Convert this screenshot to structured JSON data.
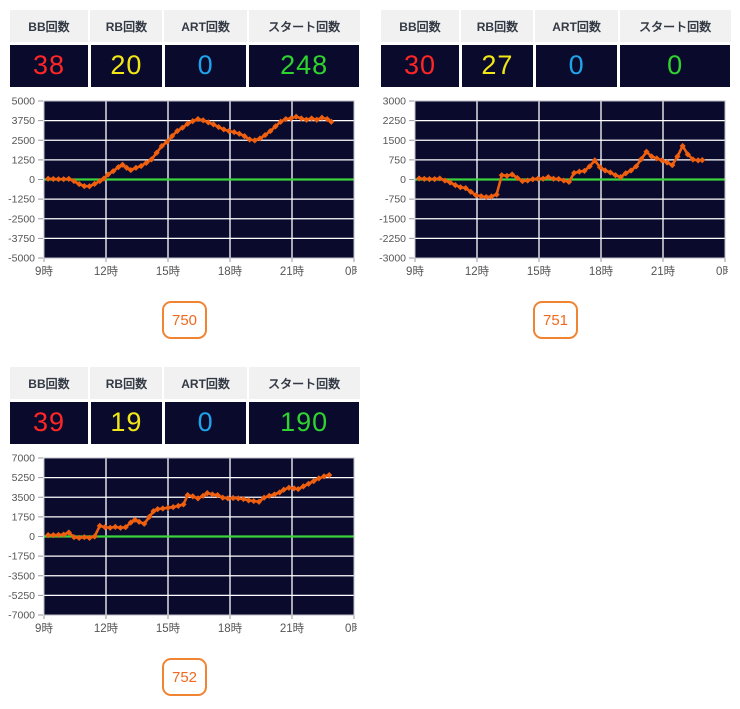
{
  "stats_headers": [
    "BB回数",
    "RB回数",
    "ART回数",
    "スタート回数"
  ],
  "value_colors": {
    "bb": "#ff2626",
    "rb": "#f2e716",
    "art": "#1fa3ea",
    "start": "#2fd32f"
  },
  "table_colors": {
    "cell_bg": "#0a0a2d",
    "header_bg": "#f1f1f2"
  },
  "panels": [
    {
      "machine_label": "750",
      "bb": "38",
      "rb": "20",
      "art": "0",
      "start": "248",
      "chart_data": {
        "type": "line",
        "title": "",
        "xlabel": "",
        "ylabel": "",
        "xlim": [
          9,
          24
        ],
        "ylim": [
          -5000,
          5000
        ],
        "y_step": 1250,
        "x_tick_hours": [
          9,
          12,
          15,
          18,
          21,
          24
        ],
        "x_tick_labels": [
          "9時",
          "12時",
          "15時",
          "18時",
          "21時",
          "0時"
        ],
        "grid": true,
        "bg_color": "#0a0a2d",
        "grid_color": "#ffffff",
        "zero_line_color": "#3bd33b",
        "series_color": "#ee5f10",
        "points": [
          [
            9.2,
            50
          ],
          [
            9.45,
            30
          ],
          [
            9.7,
            20
          ],
          [
            9.95,
            20
          ],
          [
            10.2,
            40
          ],
          [
            10.45,
            -100
          ],
          [
            10.7,
            -290
          ],
          [
            10.95,
            -420
          ],
          [
            11.2,
            -430
          ],
          [
            11.45,
            -280
          ],
          [
            11.7,
            -100
          ],
          [
            11.9,
            60
          ],
          [
            12.1,
            320
          ],
          [
            12.35,
            530
          ],
          [
            12.6,
            790
          ],
          [
            12.8,
            940
          ],
          [
            13.0,
            745
          ],
          [
            13.2,
            600
          ],
          [
            13.45,
            745
          ],
          [
            13.7,
            860
          ],
          [
            13.95,
            1060
          ],
          [
            14.2,
            1280
          ],
          [
            14.45,
            1700
          ],
          [
            14.7,
            2130
          ],
          [
            14.95,
            2400
          ],
          [
            15.2,
            2770
          ],
          [
            15.45,
            3090
          ],
          [
            15.7,
            3300
          ],
          [
            15.95,
            3550
          ],
          [
            16.2,
            3720
          ],
          [
            16.45,
            3850
          ],
          [
            16.7,
            3770
          ],
          [
            16.95,
            3640
          ],
          [
            17.2,
            3510
          ],
          [
            17.45,
            3340
          ],
          [
            17.7,
            3190
          ],
          [
            17.95,
            3085
          ],
          [
            18.2,
            3020
          ],
          [
            18.45,
            2915
          ],
          [
            18.7,
            2765
          ],
          [
            18.95,
            2550
          ],
          [
            19.2,
            2490
          ],
          [
            19.45,
            2615
          ],
          [
            19.7,
            2830
          ],
          [
            19.95,
            3085
          ],
          [
            20.2,
            3385
          ],
          [
            20.45,
            3680
          ],
          [
            20.7,
            3850
          ],
          [
            20.95,
            3890
          ],
          [
            21.2,
            4000
          ],
          [
            21.45,
            3890
          ],
          [
            21.7,
            3805
          ],
          [
            21.95,
            3890
          ],
          [
            22.2,
            3805
          ],
          [
            22.45,
            3935
          ],
          [
            22.7,
            3850
          ],
          [
            22.9,
            3680
          ]
        ]
      }
    },
    {
      "machine_label": "751",
      "bb": "30",
      "rb": "27",
      "art": "0",
      "start": "0",
      "chart_data": {
        "type": "line",
        "title": "",
        "xlabel": "",
        "ylabel": "",
        "xlim": [
          9,
          24
        ],
        "ylim": [
          -3000,
          3000
        ],
        "y_step": 750,
        "x_tick_hours": [
          9,
          12,
          15,
          18,
          21,
          24
        ],
        "x_tick_labels": [
          "9時",
          "12時",
          "15時",
          "18時",
          "21時",
          "0時"
        ],
        "grid": true,
        "bg_color": "#0a0a2d",
        "grid_color": "#ffffff",
        "zero_line_color": "#3bd33b",
        "series_color": "#ee5f10",
        "points": [
          [
            9.2,
            40
          ],
          [
            9.45,
            25
          ],
          [
            9.7,
            15
          ],
          [
            9.95,
            15
          ],
          [
            10.2,
            40
          ],
          [
            10.45,
            -40
          ],
          [
            10.7,
            -115
          ],
          [
            10.95,
            -215
          ],
          [
            11.2,
            -295
          ],
          [
            11.45,
            -330
          ],
          [
            11.7,
            -470
          ],
          [
            11.95,
            -600
          ],
          [
            12.2,
            -640
          ],
          [
            12.45,
            -670
          ],
          [
            12.7,
            -650
          ],
          [
            12.95,
            -575
          ],
          [
            13.2,
            165
          ],
          [
            13.45,
            140
          ],
          [
            13.7,
            190
          ],
          [
            13.95,
            60
          ],
          [
            14.2,
            -60
          ],
          [
            14.45,
            -40
          ],
          [
            14.7,
            10
          ],
          [
            14.95,
            30
          ],
          [
            15.2,
            30
          ],
          [
            15.45,
            90
          ],
          [
            15.7,
            30
          ],
          [
            15.95,
            20
          ],
          [
            16.2,
            -40
          ],
          [
            16.45,
            -90
          ],
          [
            16.7,
            250
          ],
          [
            16.95,
            300
          ],
          [
            17.2,
            330
          ],
          [
            17.45,
            500
          ],
          [
            17.7,
            730
          ],
          [
            17.95,
            470
          ],
          [
            18.2,
            345
          ],
          [
            18.45,
            270
          ],
          [
            18.7,
            165
          ],
          [
            18.95,
            90
          ],
          [
            19.2,
            240
          ],
          [
            19.45,
            345
          ],
          [
            19.7,
            500
          ],
          [
            19.95,
            780
          ],
          [
            20.2,
            1060
          ],
          [
            20.45,
            880
          ],
          [
            20.7,
            805
          ],
          [
            20.95,
            730
          ],
          [
            21.2,
            650
          ],
          [
            21.45,
            550
          ],
          [
            21.7,
            880
          ],
          [
            21.95,
            1280
          ],
          [
            22.2,
            960
          ],
          [
            22.45,
            765
          ],
          [
            22.7,
            730
          ],
          [
            22.9,
            740
          ]
        ]
      }
    },
    {
      "machine_label": "752",
      "bb": "39",
      "rb": "19",
      "art": "0",
      "start": "190",
      "chart_data": {
        "type": "line",
        "title": "",
        "xlabel": "",
        "ylabel": "",
        "xlim": [
          9,
          24
        ],
        "ylim": [
          -7000,
          7000
        ],
        "y_step": 1750,
        "x_tick_hours": [
          9,
          12,
          15,
          18,
          21,
          24
        ],
        "x_tick_labels": [
          "9時",
          "12時",
          "15時",
          "18時",
          "21時",
          "0時"
        ],
        "grid": true,
        "bg_color": "#0a0a2d",
        "grid_color": "#ffffff",
        "zero_line_color": "#3bd33b",
        "series_color": "#ee5f10",
        "points": [
          [
            9.2,
            120
          ],
          [
            9.45,
            120
          ],
          [
            9.7,
            140
          ],
          [
            9.95,
            170
          ],
          [
            10.2,
            360
          ],
          [
            10.45,
            -60
          ],
          [
            10.7,
            -120
          ],
          [
            10.95,
            -60
          ],
          [
            11.2,
            -120
          ],
          [
            11.45,
            0
          ],
          [
            11.7,
            950
          ],
          [
            11.95,
            830
          ],
          [
            12.2,
            775
          ],
          [
            12.45,
            860
          ],
          [
            12.7,
            775
          ],
          [
            12.95,
            830
          ],
          [
            13.2,
            1250
          ],
          [
            13.4,
            1490
          ],
          [
            13.6,
            1310
          ],
          [
            13.85,
            1130
          ],
          [
            14.1,
            1760
          ],
          [
            14.3,
            2260
          ],
          [
            14.5,
            2440
          ],
          [
            14.75,
            2500
          ],
          [
            15.0,
            2560
          ],
          [
            15.25,
            2620
          ],
          [
            15.5,
            2730
          ],
          [
            15.75,
            2860
          ],
          [
            15.95,
            3690
          ],
          [
            16.2,
            3580
          ],
          [
            16.45,
            3400
          ],
          [
            16.7,
            3630
          ],
          [
            16.9,
            3870
          ],
          [
            17.15,
            3750
          ],
          [
            17.4,
            3690
          ],
          [
            17.65,
            3460
          ],
          [
            17.9,
            3400
          ],
          [
            18.15,
            3430
          ],
          [
            18.4,
            3400
          ],
          [
            18.65,
            3340
          ],
          [
            18.9,
            3220
          ],
          [
            19.15,
            3160
          ],
          [
            19.4,
            3100
          ],
          [
            19.65,
            3460
          ],
          [
            19.9,
            3630
          ],
          [
            20.15,
            3750
          ],
          [
            20.4,
            3930
          ],
          [
            20.6,
            4170
          ],
          [
            20.85,
            4350
          ],
          [
            21.1,
            4290
          ],
          [
            21.3,
            4230
          ],
          [
            21.55,
            4470
          ],
          [
            21.8,
            4700
          ],
          [
            22.05,
            4940
          ],
          [
            22.3,
            5180
          ],
          [
            22.55,
            5360
          ],
          [
            22.8,
            5480
          ]
        ]
      }
    }
  ]
}
